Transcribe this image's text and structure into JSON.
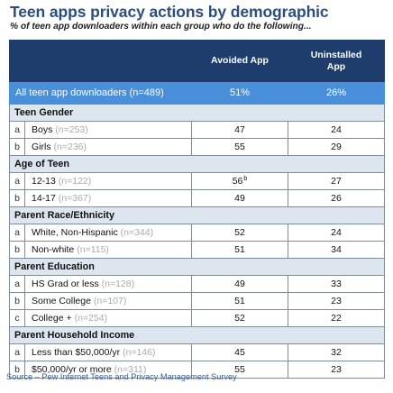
{
  "title": "Teen apps privacy actions by demographic",
  "subtitle": "% of teen app downloaders within each group who do the following...",
  "source": "Source – Pew Internet Teens and Privacy Management Survey",
  "colors": {
    "title": "#2d4d7f",
    "header": "#1f3d6c",
    "total_row": "#4a8fda",
    "section": "#dde5ee"
  },
  "chart_data": {
    "type": "table",
    "columns": [
      "Avoided App",
      "Uninstalled App"
    ],
    "total": {
      "label": "All teen app downloaders (n=489)",
      "values": [
        "51%",
        "26%"
      ]
    },
    "sections": [
      {
        "title": "Teen Gender",
        "rows": [
          {
            "letter": "a",
            "label": "Boys",
            "n": "(n=253)",
            "values": [
              "47",
              "24"
            ],
            "sup": ""
          },
          {
            "letter": "b",
            "label": "Girls",
            "n": "(n=236)",
            "values": [
              "55",
              "29"
            ],
            "sup": ""
          }
        ]
      },
      {
        "title": "Age of Teen",
        "rows": [
          {
            "letter": "a",
            "label": "12-13",
            "n": "(n=122)",
            "values": [
              "56",
              "27"
            ],
            "sup": "b"
          },
          {
            "letter": "b",
            "label": "14-17",
            "n": "(n=367)",
            "values": [
              "49",
              "26"
            ],
            "sup": ""
          }
        ]
      },
      {
        "title": "Parent Race/Ethnicity",
        "rows": [
          {
            "letter": "a",
            "label": "White, Non-Hispanic",
            "n": "(n=344)",
            "values": [
              "52",
              "24"
            ],
            "sup": ""
          },
          {
            "letter": "b",
            "label": "Non-white",
            "n": "(n=115)",
            "values": [
              "51",
              "34"
            ],
            "sup": ""
          }
        ]
      },
      {
        "title": "Parent Education",
        "rows": [
          {
            "letter": "a",
            "label": "HS Grad or less",
            "n": "(n=128)",
            "values": [
              "49",
              "33"
            ],
            "sup": ""
          },
          {
            "letter": "b",
            "label": "Some College",
            "n": "(n=107)",
            "values": [
              "51",
              "23"
            ],
            "sup": ""
          },
          {
            "letter": "c",
            "label": "College +",
            "n": "(n=254)",
            "values": [
              "52",
              "22"
            ],
            "sup": ""
          }
        ]
      },
      {
        "title": "Parent Household Income",
        "rows": [
          {
            "letter": "a",
            "label": "Less than $50,000/yr",
            "n": "(n=146)",
            "values": [
              "45",
              "32"
            ],
            "sup": ""
          },
          {
            "letter": "b",
            "label": "$50,000/yr or more",
            "n": "(n=311)",
            "values": [
              "55",
              "23"
            ],
            "sup": ""
          }
        ]
      }
    ]
  }
}
